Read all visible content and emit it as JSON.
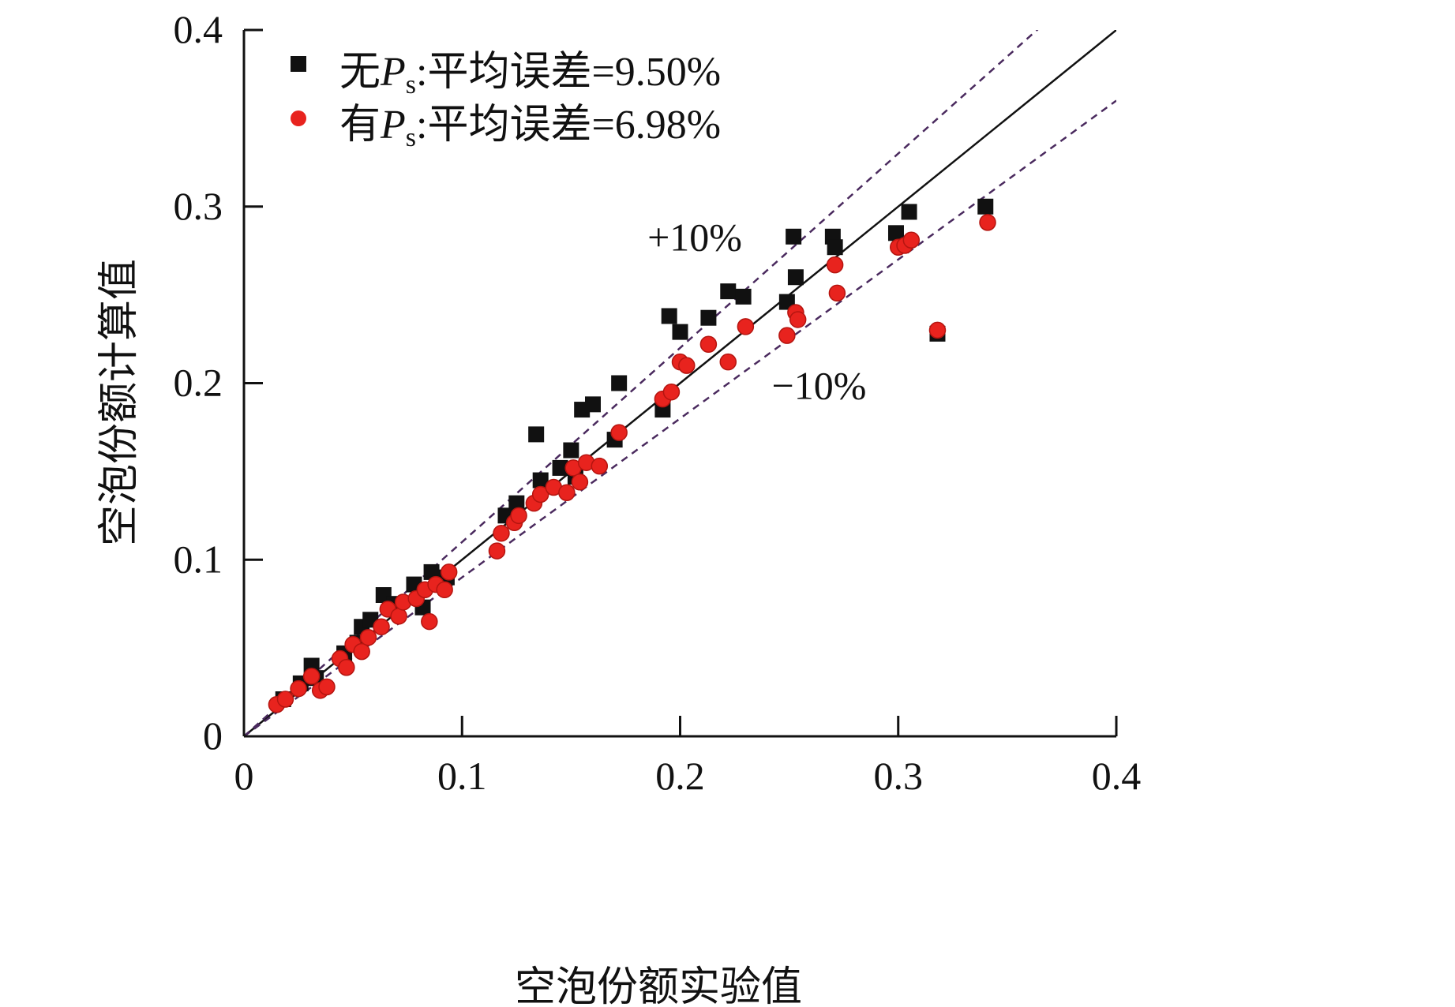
{
  "chart_data": {
    "type": "scatter",
    "title": "",
    "xlabel": "空泡份额实验值",
    "ylabel": "空泡份额计算值",
    "xlim": [
      0,
      0.4
    ],
    "ylim": [
      0,
      0.4
    ],
    "xticks": [
      "0",
      "0.1",
      "0.2",
      "0.3",
      "0.4"
    ],
    "yticks": [
      "0",
      "0.1",
      "0.2",
      "0.3",
      "0.4"
    ],
    "legend_position": "top-left",
    "series": [
      {
        "name_prefix": "无",
        "symbol_main": "P",
        "symbol_sub": "s",
        "name_suffix": ":平均误差=9.50%",
        "marker": "square",
        "color": "#111111",
        "points": [
          [
            0.018,
            0.021
          ],
          [
            0.026,
            0.03
          ],
          [
            0.031,
            0.04
          ],
          [
            0.033,
            0.033
          ],
          [
            0.046,
            0.047
          ],
          [
            0.052,
            0.053
          ],
          [
            0.054,
            0.062
          ],
          [
            0.058,
            0.066
          ],
          [
            0.064,
            0.08
          ],
          [
            0.069,
            0.075
          ],
          [
            0.078,
            0.086
          ],
          [
            0.082,
            0.073
          ],
          [
            0.086,
            0.093
          ],
          [
            0.092,
            0.087
          ],
          [
            0.093,
            0.09
          ],
          [
            0.12,
            0.125
          ],
          [
            0.125,
            0.132
          ],
          [
            0.134,
            0.171
          ],
          [
            0.136,
            0.145
          ],
          [
            0.145,
            0.152
          ],
          [
            0.15,
            0.162
          ],
          [
            0.152,
            0.147
          ],
          [
            0.155,
            0.185
          ],
          [
            0.16,
            0.188
          ],
          [
            0.17,
            0.168
          ],
          [
            0.172,
            0.2
          ],
          [
            0.192,
            0.185
          ],
          [
            0.195,
            0.238
          ],
          [
            0.2,
            0.229
          ],
          [
            0.213,
            0.237
          ],
          [
            0.222,
            0.252
          ],
          [
            0.229,
            0.249
          ],
          [
            0.249,
            0.246
          ],
          [
            0.252,
            0.283
          ],
          [
            0.253,
            0.26
          ],
          [
            0.27,
            0.283
          ],
          [
            0.271,
            0.277
          ],
          [
            0.299,
            0.285
          ],
          [
            0.305,
            0.297
          ],
          [
            0.318,
            0.228
          ],
          [
            0.34,
            0.3
          ]
        ]
      },
      {
        "name_prefix": "有",
        "symbol_main": "P",
        "symbol_sub": "s",
        "name_suffix": ":平均误差=6.98%",
        "marker": "circle",
        "color": "#e8231e",
        "points": [
          [
            0.015,
            0.018
          ],
          [
            0.019,
            0.021
          ],
          [
            0.025,
            0.027
          ],
          [
            0.031,
            0.034
          ],
          [
            0.035,
            0.026
          ],
          [
            0.038,
            0.028
          ],
          [
            0.044,
            0.044
          ],
          [
            0.047,
            0.039
          ],
          [
            0.05,
            0.052
          ],
          [
            0.054,
            0.048
          ],
          [
            0.057,
            0.056
          ],
          [
            0.063,
            0.062
          ],
          [
            0.066,
            0.072
          ],
          [
            0.071,
            0.068
          ],
          [
            0.073,
            0.076
          ],
          [
            0.079,
            0.078
          ],
          [
            0.083,
            0.083
          ],
          [
            0.085,
            0.065
          ],
          [
            0.088,
            0.086
          ],
          [
            0.092,
            0.083
          ],
          [
            0.094,
            0.093
          ],
          [
            0.116,
            0.105
          ],
          [
            0.118,
            0.115
          ],
          [
            0.124,
            0.121
          ],
          [
            0.126,
            0.125
          ],
          [
            0.133,
            0.132
          ],
          [
            0.136,
            0.137
          ],
          [
            0.142,
            0.141
          ],
          [
            0.148,
            0.138
          ],
          [
            0.151,
            0.152
          ],
          [
            0.154,
            0.144
          ],
          [
            0.157,
            0.155
          ],
          [
            0.163,
            0.153
          ],
          [
            0.172,
            0.172
          ],
          [
            0.192,
            0.191
          ],
          [
            0.196,
            0.195
          ],
          [
            0.2,
            0.212
          ],
          [
            0.203,
            0.21
          ],
          [
            0.213,
            0.222
          ],
          [
            0.222,
            0.212
          ],
          [
            0.23,
            0.232
          ],
          [
            0.249,
            0.227
          ],
          [
            0.253,
            0.24
          ],
          [
            0.254,
            0.236
          ],
          [
            0.271,
            0.267
          ],
          [
            0.272,
            0.251
          ],
          [
            0.3,
            0.277
          ],
          [
            0.303,
            0.278
          ],
          [
            0.306,
            0.281
          ],
          [
            0.318,
            0.23
          ],
          [
            0.341,
            0.291
          ]
        ]
      }
    ],
    "reference_lines": [
      {
        "label": "",
        "slope": 1.0,
        "style": "solid"
      },
      {
        "label": "+10%",
        "slope": 1.1,
        "style": "dashed"
      },
      {
        "label": "−10%",
        "slope": 0.9,
        "style": "dashed"
      }
    ],
    "annotations": [
      {
        "text": "+10%",
        "at_x": 0.185,
        "at_y": 0.275
      },
      {
        "text": "−10%",
        "at_x": 0.242,
        "at_y": 0.191
      }
    ]
  }
}
